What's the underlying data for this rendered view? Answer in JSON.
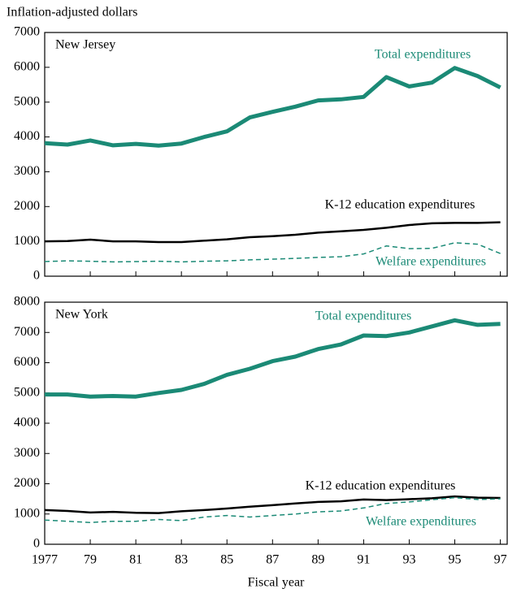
{
  "chart_data": [
    {
      "type": "line",
      "title": "New Jersey",
      "ylabel": "Inflation-adjusted dollars",
      "x": [
        1977,
        1978,
        1979,
        1980,
        1981,
        1982,
        1983,
        1984,
        1985,
        1986,
        1987,
        1988,
        1989,
        1990,
        1991,
        1992,
        1993,
        1994,
        1995,
        1996,
        1997
      ],
      "xlim": [
        1977,
        1997.3
      ],
      "ylim": [
        0,
        7000
      ],
      "yticks": [
        0,
        1000,
        2000,
        3000,
        4000,
        5000,
        6000,
        7000
      ],
      "series": [
        {
          "name": "Total expenditures",
          "color": "#1b8a76",
          "width": 5,
          "dashed": false,
          "values": [
            3820,
            3780,
            3900,
            3760,
            3800,
            3750,
            3810,
            4000,
            4160,
            4560,
            4720,
            4870,
            5050,
            5080,
            5150,
            5720,
            5450,
            5560,
            5980,
            5750,
            5420
          ]
        },
        {
          "name": "K-12 education expenditures",
          "color": "#000000",
          "width": 2.5,
          "dashed": false,
          "values": [
            1000,
            1010,
            1050,
            1000,
            1000,
            980,
            980,
            1020,
            1060,
            1120,
            1150,
            1190,
            1250,
            1290,
            1330,
            1390,
            1470,
            1520,
            1530,
            1530,
            1550
          ]
        },
        {
          "name": "Welfare expenditures",
          "color": "#1b8a76",
          "width": 1.5,
          "dashed": true,
          "values": [
            420,
            440,
            430,
            410,
            420,
            430,
            410,
            430,
            440,
            470,
            490,
            510,
            540,
            560,
            640,
            870,
            790,
            800,
            960,
            920,
            650
          ]
        }
      ]
    },
    {
      "type": "line",
      "title": "New York",
      "xlabel": "Fiscal year",
      "x": [
        1977,
        1978,
        1979,
        1980,
        1981,
        1982,
        1983,
        1984,
        1985,
        1986,
        1987,
        1988,
        1989,
        1990,
        1991,
        1992,
        1993,
        1994,
        1995,
        1996,
        1997
      ],
      "xlim": [
        1977,
        1997.3
      ],
      "ylim": [
        0,
        8000
      ],
      "yticks": [
        0,
        1000,
        2000,
        3000,
        4000,
        5000,
        6000,
        7000,
        8000
      ],
      "xticks": [
        1977,
        {
          "value": 1979,
          "label": "79"
        },
        {
          "value": 1981,
          "label": "81"
        },
        {
          "value": 1983,
          "label": "83"
        },
        {
          "value": 1985,
          "label": "85"
        },
        {
          "value": 1987,
          "label": "87"
        },
        {
          "value": 1989,
          "label": "89"
        },
        {
          "value": 1991,
          "label": "91"
        },
        {
          "value": 1993,
          "label": "93"
        },
        {
          "value": 1995,
          "label": "95"
        },
        {
          "value": 1997,
          "label": "97"
        }
      ],
      "series": [
        {
          "name": "Total expenditures",
          "color": "#1b8a76",
          "width": 5,
          "dashed": false,
          "values": [
            4950,
            4950,
            4880,
            4900,
            4880,
            5000,
            5100,
            5300,
            5600,
            5800,
            6050,
            6200,
            6450,
            6600,
            6900,
            6880,
            7000,
            7200,
            7400,
            7250,
            7280
          ]
        },
        {
          "name": "K-12 education expenditures",
          "color": "#000000",
          "width": 2.5,
          "dashed": false,
          "values": [
            1130,
            1100,
            1050,
            1070,
            1040,
            1030,
            1090,
            1130,
            1180,
            1240,
            1290,
            1350,
            1400,
            1420,
            1480,
            1460,
            1490,
            1520,
            1580,
            1540,
            1530
          ]
        },
        {
          "name": "Welfare expenditures",
          "color": "#1b8a76",
          "width": 1.5,
          "dashed": true,
          "values": [
            800,
            760,
            720,
            760,
            760,
            820,
            780,
            900,
            950,
            900,
            950,
            1000,
            1070,
            1100,
            1200,
            1350,
            1400,
            1470,
            1540,
            1480,
            1500
          ]
        }
      ]
    }
  ]
}
